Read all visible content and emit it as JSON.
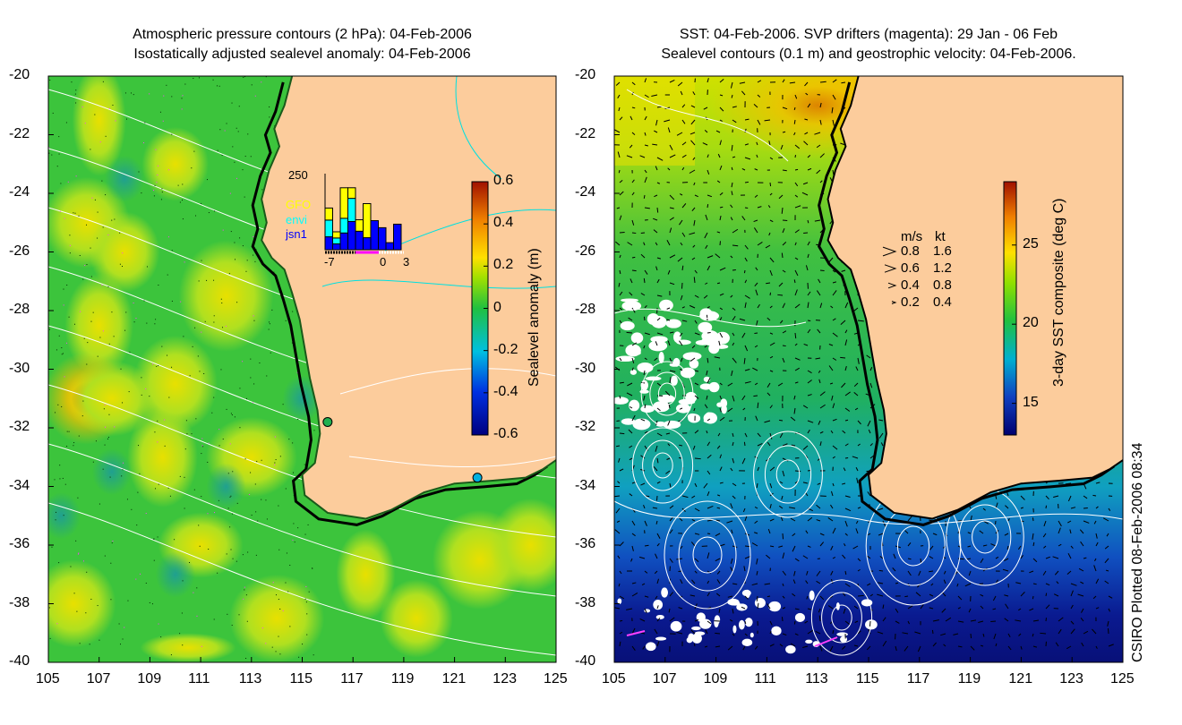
{
  "left_panel": {
    "title_line1": "Atmospheric pressure contours (2 hPa): 04-Feb-2006",
    "title_line2": "Isostatically adjusted sealevel anomaly: 04-Feb-2006",
    "colorbar": {
      "label": "Sealevel anomaly (m)",
      "ticks": [
        "0.6",
        "0.4",
        "0.2",
        "0",
        "-0.2",
        "-0.4",
        "-0.6"
      ],
      "range": [
        -0.6,
        0.6
      ]
    },
    "histogram": {
      "ymax_label": "250",
      "x_labels": [
        "-7",
        "0",
        "3"
      ],
      "legend": [
        {
          "name": "GFO",
          "color": "#ffff00"
        },
        {
          "name": "envi",
          "color": "#00ffff"
        },
        {
          "name": "jsn1",
          "color": "#0000ff"
        }
      ],
      "days": [
        -7,
        -6,
        -5,
        -4,
        -3,
        -2,
        -1,
        0,
        1,
        2
      ],
      "jsn1": [
        44,
        20,
        57,
        96,
        63,
        41,
        99,
        75,
        24,
        87
      ],
      "envi": [
        57,
        20,
        50,
        79,
        0,
        0,
        0,
        0,
        0,
        0
      ],
      "GFO": [
        41,
        21,
        104,
        36,
        39,
        116,
        0,
        0,
        0,
        0
      ]
    }
  },
  "right_panel": {
    "title_line1": "SST: 04-Feb-2006. SVP drifters (magenta): 29 Jan - 06 Feb",
    "title_line2": "Sealevel contours (0.1 m) and geostrophic velocity: 04-Feb-2006.",
    "colorbar": {
      "label": "3-day SST composite (deg C)",
      "ticks": [
        "25",
        "20",
        "15"
      ],
      "range": [
        13,
        29
      ]
    },
    "velocity_legend": {
      "header_ms": "m/s",
      "header_kt": "kt",
      "rows": [
        {
          "ms": "0.8",
          "kt": "1.6"
        },
        {
          "ms": "0.6",
          "kt": "1.2"
        },
        {
          "ms": "0.4",
          "kt": "0.8"
        },
        {
          "ms": "0.2",
          "kt": "0.4"
        }
      ]
    }
  },
  "axes": {
    "lat_ticks": [
      "-20",
      "-22",
      "-24",
      "-26",
      "-28",
      "-30",
      "-32",
      "-34",
      "-36",
      "-38",
      "-40"
    ],
    "lon_ticks": [
      "105",
      "107",
      "109",
      "111",
      "113",
      "115",
      "117",
      "119",
      "121",
      "123",
      "125"
    ]
  },
  "credit": "CSIRO Plotted 08-Feb-2006 08:34",
  "colors": {
    "land": "#fccc9c",
    "sea_anomaly_base": "#3cc43c"
  }
}
